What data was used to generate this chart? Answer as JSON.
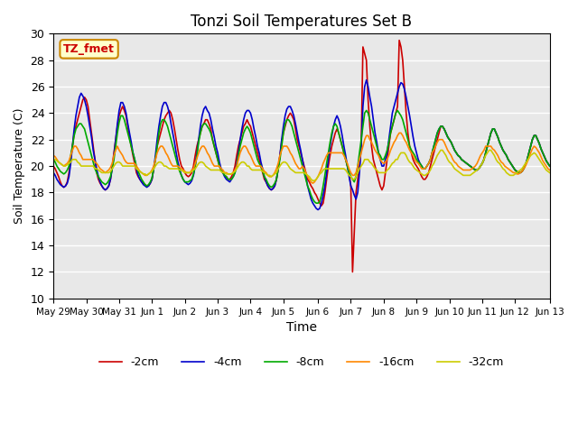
{
  "title": "Tonzi Soil Temperatures Set B",
  "xlabel": "Time",
  "ylabel": "Soil Temperature (C)",
  "ylim": [
    10,
    30
  ],
  "bg_color": "#e8e8e8",
  "grid_color": "#ffffff",
  "annotation_label": "TZ_fmet",
  "annotation_bg": "#ffffcc",
  "annotation_border": "#cc8800",
  "annotation_text_color": "#cc0000",
  "legend_labels": [
    "-2cm",
    "-4cm",
    "-8cm",
    "-16cm",
    "-32cm"
  ],
  "line_colors": [
    "#cc0000",
    "#0000cc",
    "#00aa00",
    "#ff8800",
    "#cccc00"
  ],
  "xtick_labels": [
    "May 29",
    "May 30",
    "May 31",
    "Jun 1",
    "Jun 2",
    "Jun 3",
    "Jun 4",
    "Jun 5",
    "Jun 6",
    "Jun 7",
    "Jun 8",
    "Jun 9",
    "Jun 10",
    "Jun 11",
    "Jun 12",
    "Jun 13"
  ],
  "tick_positions": [
    0,
    12,
    24,
    36,
    48,
    60,
    72,
    84,
    96,
    108,
    120,
    132,
    144,
    156,
    168,
    180
  ],
  "y_2cm": [
    20.0,
    19.8,
    19.5,
    19.2,
    18.8,
    18.5,
    18.4,
    18.5,
    18.8,
    19.5,
    20.5,
    21.5,
    22.5,
    23.0,
    23.5,
    24.0,
    24.5,
    25.0,
    25.2,
    25.0,
    24.5,
    23.5,
    22.5,
    21.5,
    20.5,
    19.5,
    19.0,
    18.7,
    18.5,
    18.3,
    18.2,
    18.3,
    18.5,
    19.0,
    20.0,
    21.0,
    22.0,
    23.0,
    23.8,
    24.2,
    24.5,
    24.2,
    23.8,
    23.0,
    22.2,
    21.5,
    20.8,
    20.2,
    19.5,
    19.2,
    19.0,
    18.8,
    18.7,
    18.6,
    18.5,
    18.5,
    18.7,
    19.0,
    19.8,
    20.5,
    21.5,
    22.0,
    22.5,
    23.0,
    23.5,
    23.8,
    24.0,
    24.2,
    24.0,
    23.5,
    22.8,
    22.0,
    21.2,
    20.5,
    20.0,
    19.8,
    19.5,
    19.3,
    19.2,
    19.3,
    19.5,
    20.0,
    20.8,
    21.5,
    22.0,
    22.5,
    23.0,
    23.2,
    23.5,
    23.5,
    23.2,
    22.8,
    22.0,
    21.5,
    21.0,
    20.5,
    20.0,
    19.7,
    19.5,
    19.3,
    19.2,
    19.0,
    19.0,
    19.2,
    19.5,
    20.0,
    20.8,
    21.5,
    22.0,
    22.5,
    23.0,
    23.2,
    23.5,
    23.2,
    23.0,
    22.5,
    22.0,
    21.5,
    21.0,
    20.5,
    20.0,
    19.5,
    19.0,
    18.8,
    18.5,
    18.3,
    18.2,
    18.3,
    18.5,
    19.0,
    19.8,
    20.8,
    21.8,
    22.5,
    23.0,
    23.5,
    23.8,
    24.0,
    23.8,
    23.5,
    22.8,
    22.0,
    21.5,
    21.0,
    20.5,
    20.0,
    19.5,
    19.0,
    18.8,
    18.5,
    18.3,
    18.0,
    17.8,
    17.5,
    17.2,
    17.0,
    17.2,
    18.0,
    19.0,
    20.0,
    20.8,
    21.5,
    22.0,
    22.5,
    22.8,
    22.5,
    22.0,
    21.5,
    21.0,
    20.5,
    20.0,
    19.5,
    18.5,
    12.0,
    15.0,
    18.0,
    19.0,
    20.0,
    21.5,
    29.0,
    28.5,
    28.0,
    25.0,
    23.0,
    21.5,
    20.5,
    20.0,
    19.5,
    19.0,
    18.5,
    18.2,
    18.5,
    19.5,
    20.5,
    21.5,
    22.5,
    23.0,
    23.5,
    24.0,
    24.5,
    29.5,
    29.0,
    28.0,
    26.0,
    24.0,
    22.5,
    21.5,
    21.0,
    20.5,
    20.2,
    20.0,
    19.8,
    19.5,
    19.2,
    19.0,
    19.0,
    19.2,
    19.5,
    20.0,
    20.5,
    21.0,
    21.5,
    22.0,
    22.5,
    23.0,
    23.0,
    22.8,
    22.5,
    22.2,
    22.0,
    21.8,
    21.5,
    21.2,
    21.0,
    20.8,
    20.7,
    20.5,
    20.4,
    20.3,
    20.2,
    20.1,
    20.0,
    19.9,
    19.8,
    19.7,
    19.7,
    19.8,
    20.0,
    20.2,
    20.5,
    21.0,
    21.5,
    22.0,
    22.5,
    22.8,
    22.8,
    22.5,
    22.2,
    21.8,
    21.5,
    21.2,
    21.0,
    20.8,
    20.5,
    20.3,
    20.1,
    19.9,
    19.7,
    19.6,
    19.5,
    19.5,
    19.6,
    19.8,
    20.1,
    20.5,
    21.0,
    21.5,
    22.0,
    22.3,
    22.3,
    22.0,
    21.7,
    21.3,
    21.0,
    20.7,
    20.4,
    20.2,
    20.0
  ],
  "y_4cm": [
    19.5,
    19.3,
    19.0,
    18.8,
    18.6,
    18.5,
    18.4,
    18.5,
    18.7,
    19.2,
    20.2,
    21.5,
    22.8,
    23.8,
    24.5,
    25.2,
    25.5,
    25.3,
    25.0,
    24.5,
    23.8,
    23.0,
    22.2,
    21.2,
    20.5,
    19.8,
    19.2,
    18.8,
    18.5,
    18.3,
    18.2,
    18.3,
    18.5,
    19.0,
    19.8,
    20.8,
    22.0,
    23.2,
    24.2,
    24.8,
    24.8,
    24.5,
    24.0,
    23.2,
    22.5,
    21.8,
    21.0,
    20.5,
    19.8,
    19.3,
    19.0,
    18.8,
    18.6,
    18.5,
    18.4,
    18.5,
    18.7,
    19.0,
    19.8,
    20.8,
    22.0,
    23.0,
    23.8,
    24.5,
    24.8,
    24.8,
    24.5,
    24.0,
    23.2,
    22.5,
    21.8,
    21.0,
    20.3,
    19.8,
    19.3,
    19.0,
    18.8,
    18.7,
    18.6,
    18.7,
    18.9,
    19.3,
    20.0,
    21.0,
    22.0,
    23.0,
    23.8,
    24.3,
    24.5,
    24.2,
    24.0,
    23.5,
    22.8,
    22.2,
    21.5,
    21.0,
    20.3,
    19.8,
    19.5,
    19.2,
    19.0,
    18.9,
    18.8,
    19.0,
    19.2,
    19.5,
    20.2,
    21.0,
    22.0,
    22.8,
    23.5,
    24.0,
    24.2,
    24.2,
    24.0,
    23.5,
    22.8,
    22.2,
    21.5,
    21.0,
    20.3,
    19.8,
    19.2,
    18.8,
    18.5,
    18.3,
    18.2,
    18.3,
    18.5,
    19.0,
    19.8,
    20.8,
    22.0,
    23.0,
    23.8,
    24.3,
    24.5,
    24.5,
    24.2,
    23.8,
    23.2,
    22.5,
    21.8,
    21.2,
    20.5,
    19.8,
    19.2,
    18.5,
    18.0,
    17.5,
    17.2,
    17.0,
    16.8,
    16.7,
    16.8,
    17.2,
    17.8,
    18.5,
    19.5,
    20.5,
    21.5,
    22.3,
    23.0,
    23.5,
    23.8,
    23.5,
    23.0,
    22.3,
    21.5,
    20.8,
    20.0,
    19.2,
    18.5,
    18.2,
    17.8,
    17.5,
    18.0,
    19.5,
    21.5,
    24.5,
    26.0,
    26.5,
    26.0,
    25.2,
    24.5,
    23.5,
    22.5,
    21.8,
    21.0,
    20.5,
    20.0,
    20.0,
    20.5,
    21.0,
    22.0,
    23.0,
    24.0,
    24.5,
    25.0,
    25.5,
    26.0,
    26.3,
    26.2,
    25.8,
    25.2,
    24.5,
    23.8,
    23.0,
    22.2,
    21.5,
    21.0,
    20.5,
    20.2,
    20.0,
    19.8,
    19.8,
    20.0,
    20.2,
    20.5,
    21.0,
    21.5,
    22.0,
    22.5,
    22.8,
    23.0,
    23.0,
    22.8,
    22.5,
    22.2,
    22.0,
    21.8,
    21.5,
    21.2,
    21.0,
    20.8,
    20.7,
    20.5,
    20.4,
    20.3,
    20.2,
    20.1,
    20.0,
    19.9,
    19.8,
    19.7,
    19.7,
    19.8,
    20.0,
    20.2,
    20.5,
    21.0,
    21.5,
    22.0,
    22.5,
    22.8,
    22.8,
    22.5,
    22.2,
    21.8,
    21.5,
    21.2,
    21.0,
    20.8,
    20.5,
    20.3,
    20.1,
    19.9,
    19.7,
    19.6,
    19.5,
    19.5,
    19.6,
    19.8,
    20.1,
    20.5,
    21.0,
    21.5,
    22.0,
    22.3,
    22.3,
    22.0,
    21.7,
    21.3,
    21.0,
    20.7,
    20.4,
    20.2,
    20.0
  ],
  "y_8cm": [
    20.5,
    20.3,
    20.0,
    19.8,
    19.6,
    19.5,
    19.4,
    19.5,
    19.7,
    20.0,
    20.8,
    21.5,
    22.3,
    22.8,
    23.0,
    23.2,
    23.2,
    23.0,
    22.8,
    22.3,
    21.8,
    21.3,
    20.8,
    20.3,
    19.8,
    19.5,
    19.2,
    19.0,
    18.8,
    18.7,
    18.6,
    18.7,
    18.9,
    19.2,
    19.8,
    20.5,
    21.5,
    22.5,
    23.3,
    23.8,
    23.8,
    23.5,
    23.0,
    22.5,
    22.0,
    21.5,
    21.0,
    20.5,
    20.0,
    19.6,
    19.3,
    19.0,
    18.8,
    18.6,
    18.5,
    18.6,
    18.8,
    19.1,
    19.8,
    20.5,
    21.5,
    22.5,
    23.2,
    23.5,
    23.5,
    23.3,
    23.0,
    22.5,
    22.0,
    21.5,
    21.0,
    20.5,
    20.0,
    19.6,
    19.3,
    19.0,
    18.8,
    18.8,
    18.8,
    18.9,
    19.0,
    19.4,
    20.0,
    20.8,
    21.8,
    22.5,
    23.0,
    23.2,
    23.2,
    23.0,
    22.8,
    22.5,
    22.0,
    21.5,
    21.0,
    20.5,
    20.0,
    19.7,
    19.5,
    19.3,
    19.2,
    19.0,
    19.0,
    19.0,
    19.2,
    19.5,
    20.0,
    20.8,
    21.5,
    22.0,
    22.5,
    22.8,
    23.0,
    22.8,
    22.5,
    22.0,
    21.5,
    21.0,
    20.5,
    20.2,
    20.0,
    19.6,
    19.2,
    19.0,
    18.7,
    18.5,
    18.4,
    18.5,
    18.7,
    19.0,
    19.8,
    20.5,
    21.5,
    22.5,
    23.2,
    23.5,
    23.5,
    23.3,
    23.0,
    22.5,
    22.0,
    21.5,
    21.0,
    20.5,
    20.0,
    19.5,
    19.0,
    18.5,
    18.2,
    17.8,
    17.5,
    17.3,
    17.2,
    17.2,
    17.3,
    17.8,
    18.5,
    19.3,
    20.2,
    21.0,
    21.8,
    22.5,
    23.0,
    23.2,
    23.0,
    22.5,
    22.0,
    21.5,
    21.0,
    20.5,
    20.0,
    19.5,
    19.2,
    19.0,
    18.8,
    19.2,
    20.0,
    21.0,
    22.0,
    23.0,
    24.0,
    24.2,
    24.0,
    23.5,
    23.0,
    22.5,
    22.0,
    21.5,
    21.0,
    20.8,
    20.5,
    20.5,
    20.8,
    21.2,
    21.8,
    22.5,
    23.0,
    23.5,
    24.0,
    24.2,
    24.0,
    23.8,
    23.5,
    23.0,
    22.5,
    22.0,
    21.5,
    21.2,
    21.0,
    20.8,
    20.5,
    20.3,
    20.2,
    20.0,
    19.8,
    19.8,
    20.0,
    20.2,
    20.5,
    21.0,
    21.5,
    22.0,
    22.5,
    22.8,
    23.0,
    23.0,
    22.8,
    22.5,
    22.2,
    22.0,
    21.8,
    21.5,
    21.2,
    21.0,
    20.8,
    20.7,
    20.5,
    20.4,
    20.3,
    20.2,
    20.1,
    20.0,
    19.9,
    19.8,
    19.7,
    19.7,
    19.8,
    20.0,
    20.2,
    20.5,
    21.0,
    21.5,
    22.0,
    22.5,
    22.8,
    22.8,
    22.5,
    22.2,
    21.8,
    21.5,
    21.2,
    21.0,
    20.8,
    20.5,
    20.3,
    20.1,
    19.9,
    19.7,
    19.6,
    19.5,
    19.5,
    19.6,
    19.8,
    20.1,
    20.5,
    21.0,
    21.5,
    22.0,
    22.3,
    22.3,
    22.0,
    21.7,
    21.3,
    21.0,
    20.7,
    20.4,
    20.2,
    20.0
  ],
  "y_16cm": [
    20.8,
    20.7,
    20.5,
    20.3,
    20.2,
    20.1,
    20.0,
    20.1,
    20.2,
    20.4,
    20.8,
    21.2,
    21.5,
    21.5,
    21.3,
    21.0,
    20.8,
    20.5,
    20.5,
    20.5,
    20.5,
    20.5,
    20.5,
    20.5,
    20.3,
    20.2,
    20.0,
    19.8,
    19.7,
    19.6,
    19.5,
    19.6,
    19.7,
    19.9,
    20.2,
    20.8,
    21.2,
    21.5,
    21.2,
    21.0,
    20.8,
    20.5,
    20.3,
    20.2,
    20.2,
    20.2,
    20.2,
    20.2,
    20.0,
    19.8,
    19.6,
    19.5,
    19.4,
    19.3,
    19.3,
    19.4,
    19.5,
    19.7,
    20.0,
    20.5,
    21.0,
    21.3,
    21.5,
    21.5,
    21.3,
    21.0,
    20.8,
    20.5,
    20.2,
    20.0,
    20.0,
    20.0,
    20.0,
    19.9,
    19.8,
    19.7,
    19.6,
    19.5,
    19.5,
    19.5,
    19.7,
    19.8,
    20.2,
    20.6,
    21.0,
    21.3,
    21.5,
    21.5,
    21.3,
    21.0,
    20.8,
    20.5,
    20.2,
    20.0,
    20.0,
    20.0,
    20.0,
    19.8,
    19.7,
    19.5,
    19.5,
    19.4,
    19.4,
    19.4,
    19.5,
    19.7,
    20.0,
    20.5,
    21.0,
    21.3,
    21.5,
    21.5,
    21.3,
    21.0,
    20.8,
    20.5,
    20.2,
    20.0,
    20.0,
    20.0,
    20.0,
    19.8,
    19.6,
    19.5,
    19.3,
    19.2,
    19.2,
    19.3,
    19.5,
    19.8,
    20.2,
    20.8,
    21.2,
    21.5,
    21.5,
    21.5,
    21.3,
    21.0,
    20.8,
    20.5,
    20.2,
    20.0,
    19.8,
    19.8,
    20.0,
    19.8,
    19.5,
    19.2,
    19.0,
    18.8,
    18.7,
    18.8,
    19.0,
    19.2,
    19.5,
    19.8,
    20.2,
    20.5,
    20.8,
    21.0,
    21.0,
    21.0,
    21.0,
    21.0,
    21.0,
    21.0,
    21.0,
    21.0,
    20.8,
    20.5,
    20.2,
    19.8,
    19.5,
    19.3,
    19.3,
    19.5,
    20.0,
    20.5,
    21.0,
    21.5,
    22.0,
    22.3,
    22.3,
    22.0,
    21.8,
    21.5,
    21.2,
    21.0,
    20.8,
    20.5,
    20.3,
    20.2,
    20.3,
    20.5,
    20.8,
    21.2,
    21.5,
    21.8,
    22.0,
    22.3,
    22.5,
    22.5,
    22.3,
    22.0,
    21.8,
    21.5,
    21.2,
    21.0,
    20.8,
    20.5,
    20.3,
    20.2,
    20.0,
    19.8,
    19.8,
    19.8,
    20.0,
    20.2,
    20.5,
    21.0,
    21.2,
    21.5,
    21.8,
    22.0,
    22.0,
    22.0,
    21.8,
    21.5,
    21.2,
    21.0,
    20.8,
    20.5,
    20.3,
    20.2,
    20.0,
    19.9,
    19.8,
    19.7,
    19.7,
    19.7,
    19.7,
    19.7,
    19.8,
    19.9,
    20.0,
    20.2,
    20.5,
    20.8,
    21.0,
    21.2,
    21.5,
    21.5,
    21.5,
    21.5,
    21.3,
    21.2,
    21.0,
    20.8,
    20.5,
    20.3,
    20.2,
    20.0,
    19.9,
    19.8,
    19.7,
    19.6,
    19.5,
    19.5,
    19.4,
    19.4,
    19.5,
    19.6,
    19.8,
    20.0,
    20.3,
    20.6,
    21.0,
    21.3,
    21.5,
    21.4,
    21.2,
    21.0,
    20.7,
    20.4,
    20.2,
    20.0,
    19.8,
    19.7
  ],
  "y_32cm": [
    20.5,
    20.5,
    20.4,
    20.3,
    20.2,
    20.1,
    20.0,
    20.0,
    20.1,
    20.2,
    20.3,
    20.5,
    20.5,
    20.5,
    20.3,
    20.2,
    20.0,
    20.0,
    20.0,
    20.0,
    20.0,
    20.0,
    20.0,
    20.0,
    19.8,
    19.8,
    19.7,
    19.6,
    19.5,
    19.5,
    19.5,
    19.5,
    19.5,
    19.6,
    19.8,
    20.0,
    20.2,
    20.3,
    20.3,
    20.2,
    20.0,
    20.0,
    20.0,
    20.0,
    20.0,
    20.0,
    20.0,
    20.0,
    19.8,
    19.7,
    19.6,
    19.5,
    19.4,
    19.4,
    19.3,
    19.4,
    19.5,
    19.6,
    19.8,
    20.0,
    20.2,
    20.3,
    20.3,
    20.2,
    20.0,
    20.0,
    19.9,
    19.8,
    19.8,
    19.8,
    19.8,
    19.8,
    19.8,
    19.7,
    19.7,
    19.6,
    19.5,
    19.5,
    19.5,
    19.5,
    19.6,
    19.7,
    19.8,
    20.0,
    20.2,
    20.3,
    20.3,
    20.2,
    20.0,
    19.9,
    19.8,
    19.7,
    19.7,
    19.7,
    19.7,
    19.7,
    19.7,
    19.6,
    19.5,
    19.5,
    19.4,
    19.4,
    19.4,
    19.4,
    19.5,
    19.6,
    19.8,
    20.0,
    20.2,
    20.3,
    20.3,
    20.2,
    20.0,
    20.0,
    19.8,
    19.7,
    19.7,
    19.7,
    19.7,
    19.7,
    19.7,
    19.6,
    19.5,
    19.4,
    19.3,
    19.3,
    19.2,
    19.3,
    19.4,
    19.5,
    19.8,
    20.0,
    20.2,
    20.3,
    20.3,
    20.2,
    20.0,
    19.8,
    19.7,
    19.6,
    19.5,
    19.5,
    19.5,
    19.5,
    19.5,
    19.5,
    19.4,
    19.3,
    19.2,
    19.0,
    18.9,
    18.9,
    19.0,
    19.2,
    19.4,
    19.5,
    19.7,
    19.8,
    19.8,
    19.8,
    19.8,
    19.8,
    19.8,
    19.8,
    19.8,
    19.8,
    19.8,
    19.8,
    19.8,
    19.7,
    19.5,
    19.3,
    19.2,
    19.0,
    19.0,
    19.2,
    19.5,
    19.8,
    20.0,
    20.2,
    20.5,
    20.5,
    20.5,
    20.3,
    20.2,
    20.0,
    19.8,
    19.7,
    19.5,
    19.5,
    19.5,
    19.5,
    19.5,
    19.7,
    19.8,
    20.0,
    20.2,
    20.3,
    20.5,
    20.5,
    20.8,
    21.0,
    21.0,
    21.0,
    20.8,
    20.5,
    20.3,
    20.2,
    20.0,
    19.8,
    19.7,
    19.6,
    19.5,
    19.4,
    19.3,
    19.3,
    19.4,
    19.5,
    19.7,
    20.0,
    20.2,
    20.5,
    20.8,
    21.0,
    21.2,
    21.2,
    21.0,
    20.8,
    20.5,
    20.3,
    20.2,
    20.0,
    19.8,
    19.7,
    19.6,
    19.5,
    19.4,
    19.3,
    19.3,
    19.3,
    19.3,
    19.3,
    19.4,
    19.5,
    19.6,
    19.7,
    19.8,
    20.0,
    20.2,
    20.5,
    20.8,
    21.0,
    21.2,
    21.2,
    21.0,
    20.8,
    20.5,
    20.3,
    20.2,
    20.0,
    19.8,
    19.7,
    19.5,
    19.4,
    19.3,
    19.3,
    19.3,
    19.4,
    19.5,
    19.6,
    19.7,
    19.8,
    20.0,
    20.2,
    20.4,
    20.6,
    20.8,
    20.9,
    21.0,
    20.9,
    20.7,
    20.5,
    20.3,
    20.1,
    19.9,
    19.7,
    19.6,
    19.5
  ]
}
